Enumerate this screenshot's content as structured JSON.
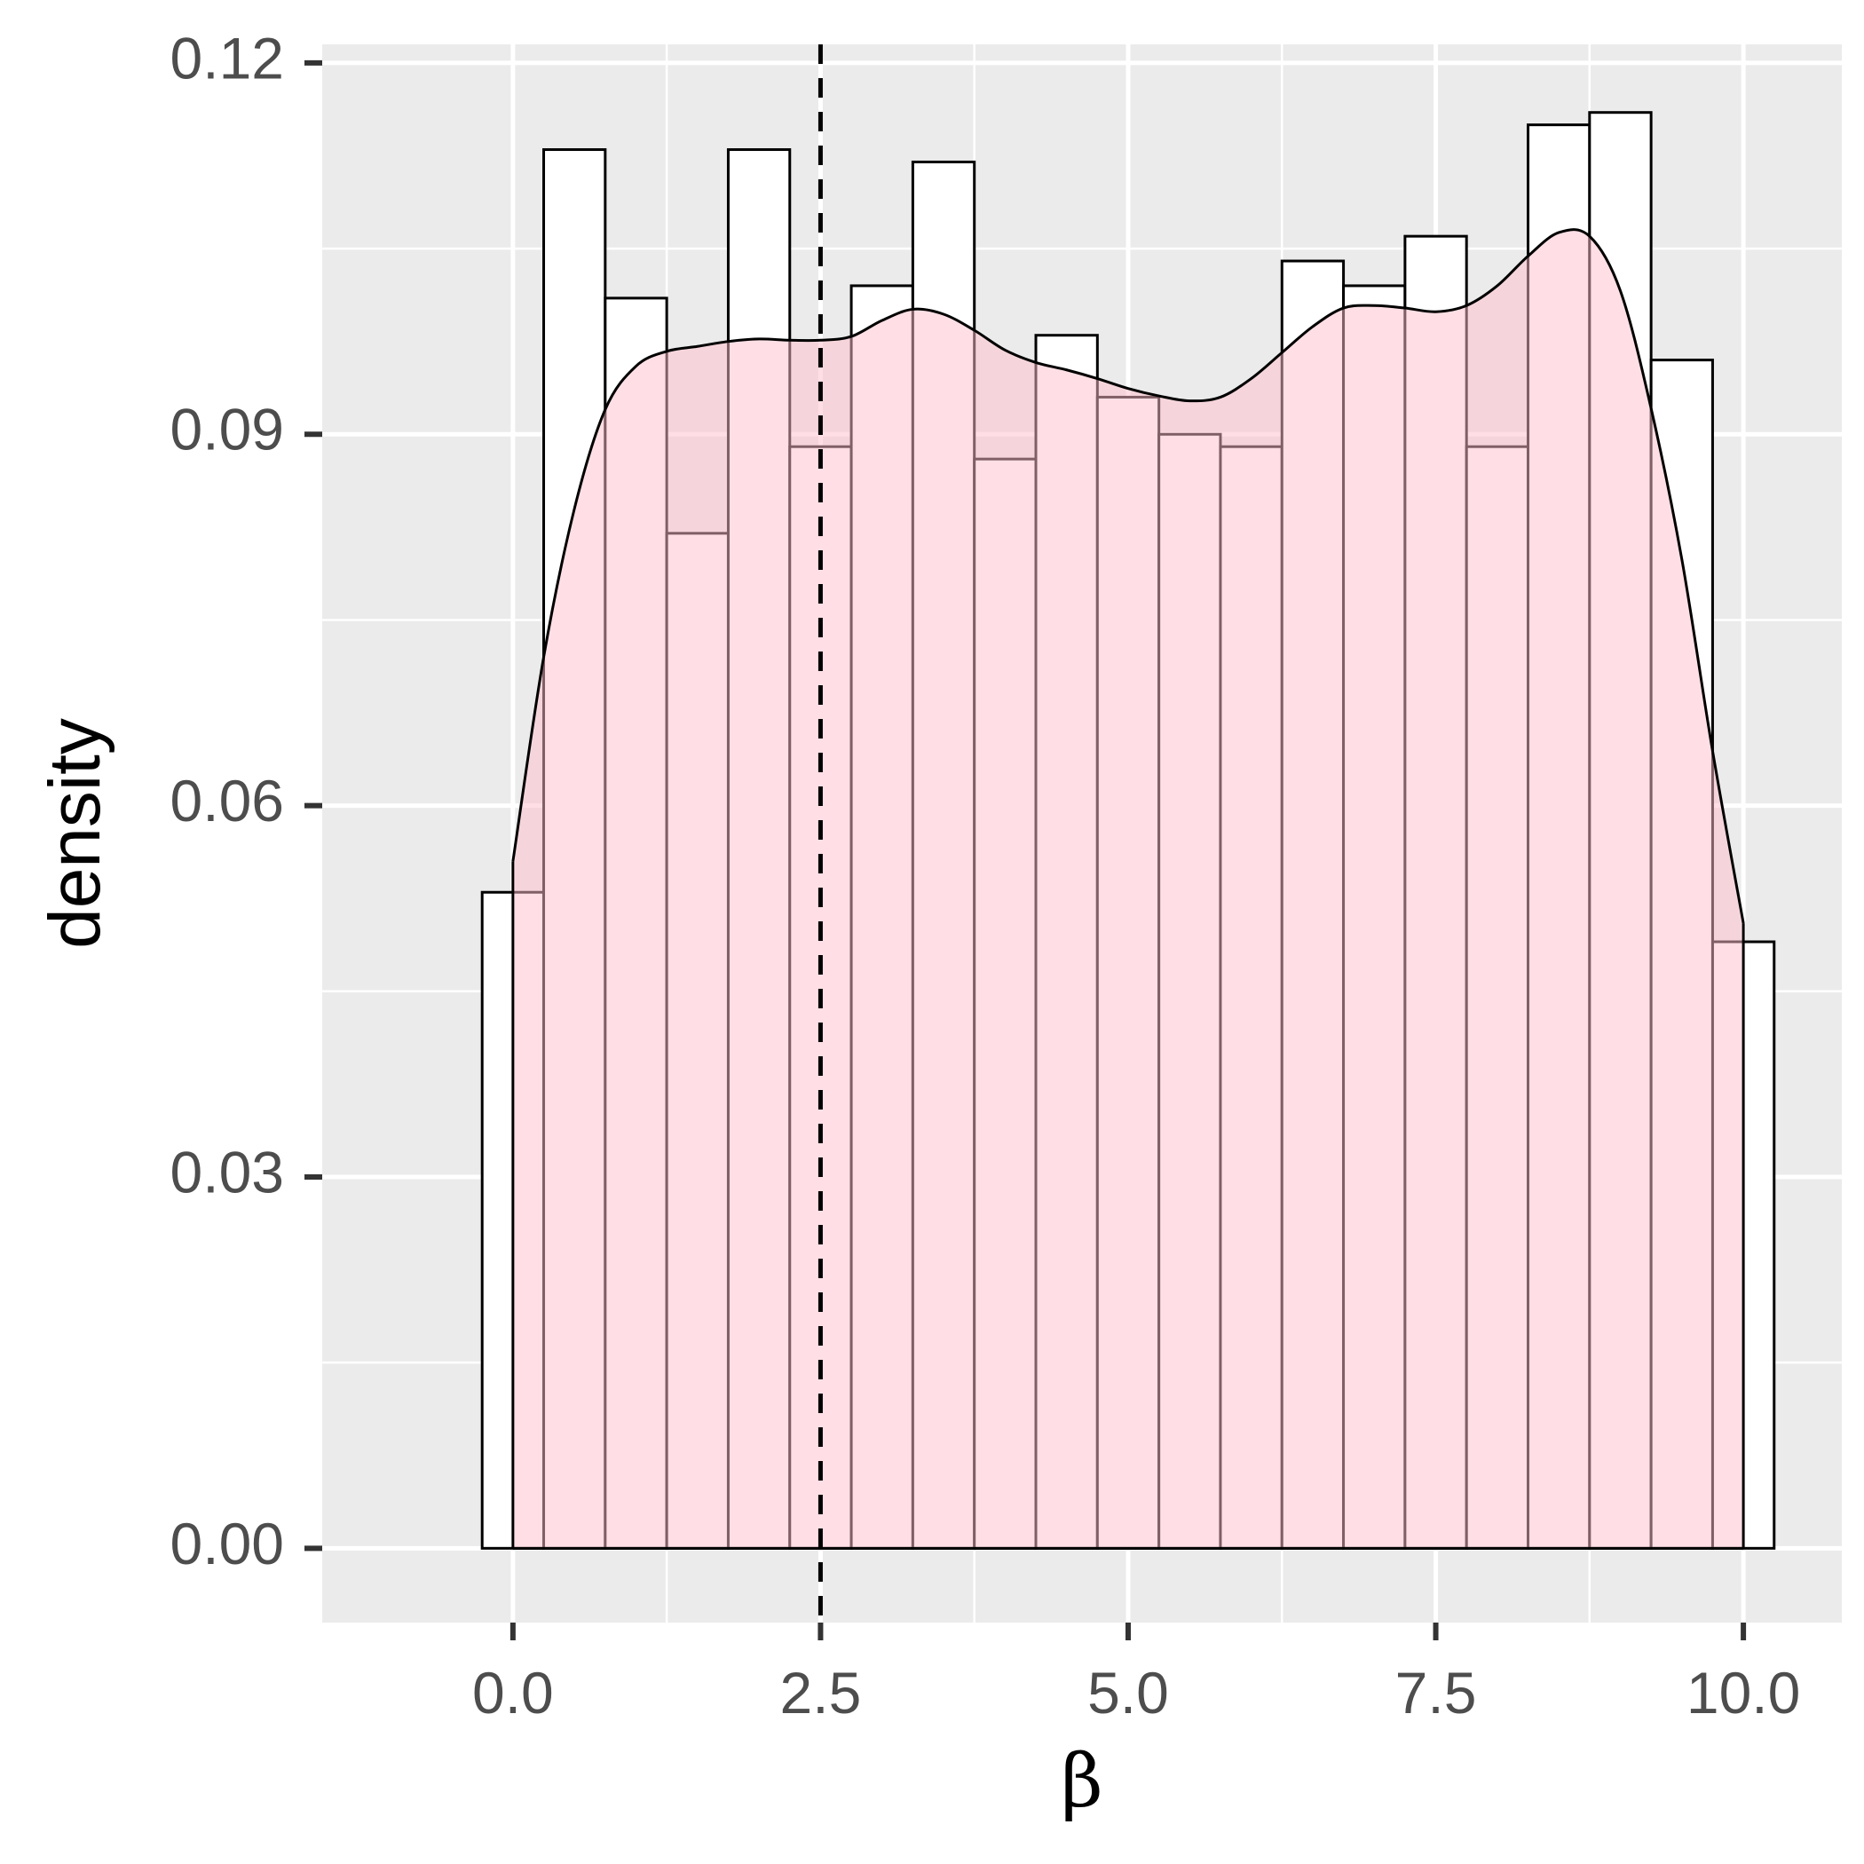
{
  "chart_data": {
    "type": "bar",
    "title": "",
    "xlabel": "β",
    "ylabel": "density",
    "xlim": [
      -1.55,
      10.8
    ],
    "ylim": [
      -0.006,
      0.1215
    ],
    "x_ticks": [
      0.0,
      2.5,
      5.0,
      7.5,
      10.0
    ],
    "x_tick_labels": [
      "0.0",
      "2.5",
      "5.0",
      "7.5",
      "10.0"
    ],
    "y_ticks": [
      0.0,
      0.03,
      0.06,
      0.09,
      0.12
    ],
    "y_tick_labels": [
      "0.00",
      "0.03",
      "0.06",
      "0.09",
      "0.12"
    ],
    "grid": true,
    "background": "#ebebeb",
    "bin_width": 0.5,
    "bin_centers": [
      0.0,
      0.5,
      1.0,
      1.5,
      2.0,
      2.5,
      3.0,
      3.5,
      4.0,
      4.5,
      5.0,
      5.5,
      6.0,
      6.5,
      7.0,
      7.5,
      8.0,
      8.5,
      9.0,
      9.5,
      10.0
    ],
    "series": [
      {
        "kind": "histogram",
        "fill": "#ffffff",
        "stroke": "#000000",
        "values": [
          0.053,
          0.113,
          0.101,
          0.082,
          0.113,
          0.089,
          0.102,
          0.112,
          0.088,
          0.098,
          0.093,
          0.09,
          0.089,
          0.104,
          0.102,
          0.106,
          0.089,
          0.115,
          0.116,
          0.096,
          0.049
        ]
      },
      {
        "kind": "density",
        "fill": "#ffc0cb",
        "fill_opacity": 0.5,
        "stroke": "#000000",
        "x": [
          0.0,
          0.25,
          0.5,
          0.75,
          1.0,
          1.25,
          1.5,
          1.75,
          2.0,
          2.25,
          2.5,
          2.75,
          3.0,
          3.25,
          3.5,
          3.75,
          4.0,
          4.25,
          4.5,
          4.75,
          5.0,
          5.25,
          5.5,
          5.75,
          6.0,
          6.25,
          6.5,
          6.75,
          7.0,
          7.25,
          7.5,
          7.75,
          8.0,
          8.25,
          8.5,
          8.75,
          9.0,
          9.25,
          9.5,
          9.75,
          10.0
        ],
        "values": [
          0.0555,
          0.072,
          0.084,
          0.092,
          0.0955,
          0.0967,
          0.0971,
          0.0975,
          0.0977,
          0.0976,
          0.0976,
          0.0979,
          0.0992,
          0.1001,
          0.0997,
          0.0984,
          0.0968,
          0.0958,
          0.0952,
          0.0945,
          0.0937,
          0.0931,
          0.0927,
          0.093,
          0.0945,
          0.0966,
          0.0987,
          0.1002,
          0.1004,
          0.1002,
          0.0999,
          0.1004,
          0.102,
          0.1044,
          0.1063,
          0.106,
          0.1016,
          0.0921,
          0.0799,
          0.0644,
          0.0505
        ]
      }
    ],
    "vline": {
      "x": 2.5,
      "style": "dashed",
      "color": "#000000"
    }
  }
}
